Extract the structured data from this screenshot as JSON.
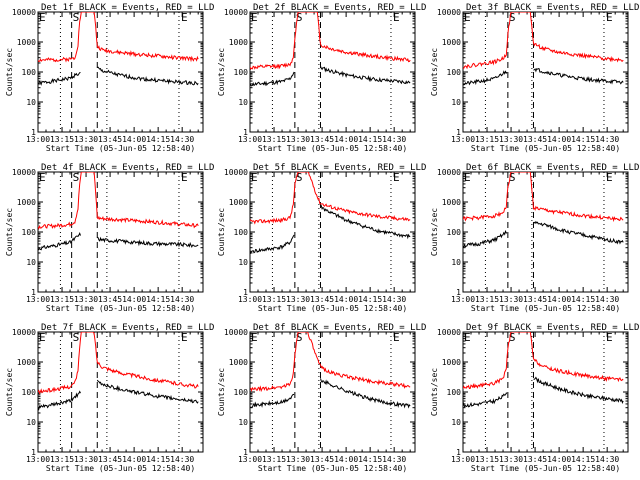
{
  "figure": {
    "shared": {
      "xlabel": "Start Time (05-Jun-05 12:58:40)",
      "ylabel": "Counts/sec",
      "x_tick_labels": [
        "13:00",
        "13:15",
        "13:30",
        "13:45",
        "14:00",
        "14:15",
        "14:30"
      ],
      "y_tick_labels": [
        "1",
        "10",
        "100",
        "1000",
        "10000"
      ],
      "marker_labels": {
        "pre": "E",
        "flare": "S",
        "post": "E"
      },
      "colors": {
        "events": "#000000",
        "lld": "#ff0000",
        "axes": "#000000",
        "background": "#ffffff"
      }
    }
  },
  "chart_data": [
    {
      "type": "line",
      "title": "Det 1f BLACK = Events, RED = LLD",
      "xlabel": "Start Time (05-Jun-05 12:58:40)",
      "ylabel": "Counts/sec",
      "x_unit": "minutes after 13:00",
      "xlim": [
        0,
        103
      ],
      "ylim": [
        1,
        10000
      ],
      "yscale": "log",
      "markers": {
        "dotted": [
          14,
          43,
          88
        ],
        "dashed": [
          21,
          37
        ]
      },
      "series": [
        {
          "name": "Events",
          "color": "#000000",
          "x": [
            0,
            10,
            20,
            23,
            27,
            35,
            37,
            40,
            50,
            60,
            70,
            80,
            90,
            100
          ],
          "values": [
            42,
            50,
            62,
            78,
            90,
            null,
            135,
            110,
            80,
            65,
            55,
            50,
            45,
            42
          ]
        },
        {
          "name": "LLD",
          "color": "#ff0000",
          "x": [
            0,
            10,
            20,
            23,
            25,
            26,
            27,
            35,
            36,
            37,
            40,
            50,
            60,
            70,
            80,
            90,
            100
          ],
          "values": [
            250,
            255,
            270,
            300,
            800,
            5000,
            10000,
            10000,
            3000,
            700,
            550,
            450,
            400,
            360,
            320,
            290,
            270
          ]
        }
      ]
    },
    {
      "type": "line",
      "title": "Det 2f BLACK = Events, RED = LLD",
      "xlabel": "Start Time (05-Jun-05 12:58:40)",
      "ylabel": "Counts/sec",
      "x_unit": "minutes after 13:00",
      "xlim": [
        0,
        103
      ],
      "ylim": [
        1,
        10000
      ],
      "yscale": "log",
      "markers": {
        "dotted": [
          14,
          43,
          88
        ],
        "dashed": [
          28,
          44
        ]
      },
      "series": [
        {
          "name": "Events",
          "color": "#000000",
          "x": [
            0,
            10,
            20,
            25,
            28,
            32,
            40,
            44,
            50,
            60,
            70,
            80,
            90,
            100
          ],
          "values": [
            38,
            42,
            48,
            60,
            110,
            null,
            null,
            140,
            110,
            80,
            65,
            55,
            50,
            45
          ]
        },
        {
          "name": "LLD",
          "color": "#ff0000",
          "x": [
            0,
            10,
            20,
            25,
            27,
            28,
            30,
            36,
            38,
            42,
            44,
            50,
            60,
            70,
            80,
            90,
            100
          ],
          "values": [
            140,
            150,
            160,
            180,
            300,
            1500,
            10000,
            10000,
            10000,
            10000,
            800,
            600,
            450,
            380,
            320,
            280,
            250
          ]
        }
      ]
    },
    {
      "type": "line",
      "title": "Det 3f BLACK = Events, RED = LLD",
      "xlabel": "Start Time (05-Jun-05 12:58:40)",
      "ylabel": "Counts/sec",
      "x_unit": "minutes after 13:00",
      "xlim": [
        0,
        103
      ],
      "ylim": [
        1,
        10000
      ],
      "yscale": "log",
      "markers": {
        "dotted": [
          14,
          43,
          88
        ],
        "dashed": [
          28,
          44
        ]
      },
      "series": [
        {
          "name": "Events",
          "color": "#000000",
          "x": [
            0,
            10,
            20,
            25,
            28,
            32,
            40,
            44,
            50,
            60,
            70,
            80,
            90,
            100
          ],
          "values": [
            40,
            48,
            60,
            90,
            110,
            null,
            null,
            130,
            105,
            80,
            65,
            55,
            50,
            45
          ]
        },
        {
          "name": "LLD",
          "color": "#ff0000",
          "x": [
            0,
            10,
            20,
            25,
            27,
            28,
            30,
            36,
            38,
            42,
            44,
            50,
            60,
            70,
            80,
            90,
            100
          ],
          "values": [
            150,
            180,
            220,
            280,
            400,
            2000,
            10000,
            10000,
            10000,
            10000,
            900,
            600,
            450,
            380,
            320,
            280,
            250
          ]
        }
      ]
    },
    {
      "type": "line",
      "title": "Det 4f BLACK = Events, RED = LLD",
      "xlabel": "Start Time (05-Jun-05 12:58:40)",
      "ylabel": "Counts/sec",
      "x_unit": "minutes after 13:00",
      "xlim": [
        0,
        103
      ],
      "ylim": [
        1,
        10000
      ],
      "yscale": "log",
      "markers": {
        "dotted": [
          14,
          43,
          88
        ],
        "dashed": [
          21,
          37
        ]
      },
      "series": [
        {
          "name": "Events",
          "color": "#000000",
          "x": [
            0,
            10,
            20,
            23,
            27,
            35,
            37,
            40,
            50,
            60,
            70,
            80,
            90,
            100
          ],
          "values": [
            28,
            35,
            45,
            60,
            90,
            null,
            60,
            55,
            50,
            45,
            42,
            40,
            38,
            35
          ]
        },
        {
          "name": "LLD",
          "color": "#ff0000",
          "x": [
            0,
            10,
            20,
            23,
            25,
            26,
            27,
            35,
            36,
            37,
            40,
            50,
            60,
            70,
            80,
            90,
            100
          ],
          "values": [
            150,
            160,
            180,
            220,
            600,
            4000,
            10000,
            10000,
            2000,
            300,
            280,
            260,
            240,
            220,
            200,
            180,
            160
          ]
        }
      ]
    },
    {
      "type": "line",
      "title": "Det 5f BLACK = Events, RED = LLD",
      "xlabel": "Start Time (05-Jun-05 12:58:40)",
      "ylabel": "Counts/sec",
      "x_unit": "minutes after 13:00",
      "xlim": [
        0,
        103
      ],
      "ylim": [
        1,
        10000
      ],
      "yscale": "log",
      "markers": {
        "dotted": [
          14,
          43,
          88
        ],
        "dashed": [
          28,
          44
        ]
      },
      "series": [
        {
          "name": "Events",
          "color": "#000000",
          "x": [
            0,
            10,
            20,
            25,
            28,
            32,
            40,
            44,
            50,
            60,
            70,
            80,
            90,
            100
          ],
          "values": [
            22,
            26,
            32,
            45,
            90,
            null,
            null,
            700,
            450,
            250,
            160,
            110,
            85,
            70
          ]
        },
        {
          "name": "LLD",
          "color": "#ff0000",
          "x": [
            0,
            10,
            20,
            25,
            27,
            28,
            30,
            36,
            38,
            42,
            44,
            50,
            60,
            70,
            80,
            90,
            100
          ],
          "values": [
            220,
            230,
            250,
            300,
            800,
            4000,
            10000,
            10000,
            6000,
            1500,
            900,
            700,
            500,
            400,
            330,
            290,
            260
          ]
        }
      ]
    },
    {
      "type": "line",
      "title": "Det 6f BLACK = Events, RED = LLD",
      "xlabel": "Start Time (05-Jun-05 12:58:40)",
      "ylabel": "Counts/sec",
      "x_unit": "minutes after 13:00",
      "xlim": [
        0,
        103
      ],
      "ylim": [
        1,
        10000
      ],
      "yscale": "log",
      "markers": {
        "dotted": [
          14,
          43,
          88
        ],
        "dashed": [
          28,
          44
        ]
      },
      "series": [
        {
          "name": "Events",
          "color": "#000000",
          "x": [
            0,
            10,
            20,
            25,
            28,
            32,
            40,
            44,
            50,
            60,
            70,
            80,
            90,
            100
          ],
          "values": [
            35,
            40,
            55,
            80,
            110,
            null,
            null,
            200,
            180,
            120,
            90,
            70,
            55,
            45
          ]
        },
        {
          "name": "LLD",
          "color": "#ff0000",
          "x": [
            0,
            10,
            20,
            25,
            27,
            28,
            30,
            36,
            38,
            42,
            44,
            50,
            60,
            70,
            80,
            90,
            100
          ],
          "values": [
            280,
            300,
            350,
            450,
            700,
            3000,
            10000,
            10000,
            10000,
            10000,
            650,
            550,
            450,
            380,
            330,
            290,
            260
          ]
        }
      ]
    },
    {
      "type": "line",
      "title": "Det 7f BLACK = Events, RED = LLD",
      "xlabel": "Start Time (05-Jun-05 12:58:40)",
      "ylabel": "Counts/sec",
      "x_unit": "minutes after 13:00",
      "xlim": [
        0,
        103
      ],
      "ylim": [
        1,
        10000
      ],
      "yscale": "log",
      "markers": {
        "dotted": [
          14,
          43,
          88
        ],
        "dashed": [
          21,
          37
        ]
      },
      "series": [
        {
          "name": "Events",
          "color": "#000000",
          "x": [
            0,
            10,
            20,
            23,
            27,
            35,
            37,
            40,
            50,
            60,
            70,
            80,
            90,
            100
          ],
          "values": [
            30,
            38,
            50,
            70,
            100,
            null,
            220,
            180,
            130,
            100,
            80,
            65,
            55,
            48
          ]
        },
        {
          "name": "LLD",
          "color": "#ff0000",
          "x": [
            0,
            10,
            20,
            23,
            25,
            26,
            27,
            35,
            36,
            37,
            40,
            50,
            60,
            70,
            80,
            90,
            100
          ],
          "values": [
            100,
            120,
            150,
            200,
            500,
            3000,
            10000,
            10000,
            3000,
            1000,
            700,
            450,
            350,
            270,
            220,
            180,
            150
          ]
        }
      ]
    },
    {
      "type": "line",
      "title": "Det 8f BLACK = Events, RED = LLD",
      "xlabel": "Start Time (05-Jun-05 12:58:40)",
      "ylabel": "Counts/sec",
      "x_unit": "minutes after 13:00",
      "xlim": [
        0,
        103
      ],
      "ylim": [
        1,
        10000
      ],
      "yscale": "log",
      "markers": {
        "dotted": [
          14,
          43,
          88
        ],
        "dashed": [
          28,
          44
        ]
      },
      "series": [
        {
          "name": "Events",
          "color": "#000000",
          "x": [
            0,
            10,
            20,
            25,
            28,
            32,
            40,
            44,
            50,
            60,
            70,
            80,
            90,
            100
          ],
          "values": [
            35,
            40,
            45,
            60,
            90,
            null,
            null,
            250,
            180,
            110,
            70,
            50,
            40,
            35
          ]
        },
        {
          "name": "LLD",
          "color": "#ff0000",
          "x": [
            0,
            10,
            20,
            25,
            27,
            28,
            30,
            36,
            38,
            42,
            44,
            50,
            60,
            70,
            80,
            90,
            100
          ],
          "values": [
            120,
            130,
            150,
            180,
            400,
            2000,
            10000,
            10000,
            5000,
            1200,
            700,
            450,
            330,
            260,
            210,
            180,
            150
          ]
        }
      ]
    },
    {
      "type": "line",
      "title": "Det 9f BLACK = Events, RED = LLD",
      "xlabel": "Start Time (05-Jun-05 12:58:40)",
      "ylabel": "Counts/sec",
      "x_unit": "minutes after 13:00",
      "xlim": [
        0,
        103
      ],
      "ylim": [
        1,
        10000
      ],
      "yscale": "log",
      "markers": {
        "dotted": [
          14,
          43,
          88
        ],
        "dashed": [
          28,
          44
        ]
      },
      "series": [
        {
          "name": "Events",
          "color": "#000000",
          "x": [
            0,
            10,
            20,
            25,
            28,
            32,
            40,
            44,
            50,
            60,
            70,
            80,
            90,
            100
          ],
          "values": [
            35,
            40,
            50,
            70,
            110,
            null,
            null,
            300,
            200,
            130,
            90,
            70,
            60,
            50
          ]
        },
        {
          "name": "LLD",
          "color": "#ff0000",
          "x": [
            0,
            10,
            20,
            25,
            27,
            28,
            30,
            36,
            38,
            42,
            44,
            50,
            60,
            70,
            80,
            90,
            100
          ],
          "values": [
            140,
            160,
            200,
            280,
            600,
            3000,
            10000,
            10000,
            10000,
            10000,
            1200,
            700,
            500,
            400,
            330,
            280,
            250
          ]
        }
      ]
    }
  ]
}
